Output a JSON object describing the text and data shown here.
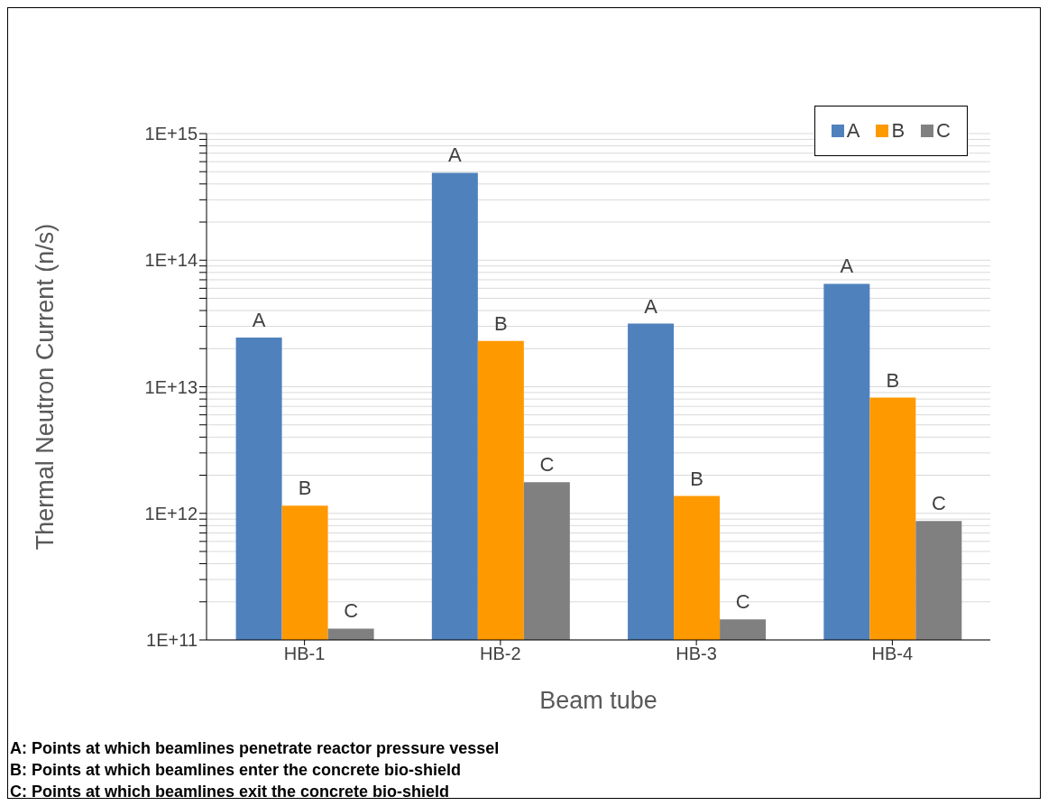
{
  "chart_data": {
    "type": "bar",
    "xlabel": "Beam tube",
    "ylabel": "Thermal Neutron Current (n/s)",
    "categories": [
      "HB-1",
      "HB-2",
      "HB-3",
      "HB-4"
    ],
    "series": [
      {
        "name": "A",
        "color": "#4f81bd",
        "values": [
          24500000000000.0,
          490000000000000.0,
          31500000000000.0,
          65000000000000.0
        ],
        "value_labels": [
          "A",
          "A",
          "A",
          "A"
        ]
      },
      {
        "name": "B",
        "color": "#ff9900",
        "values": [
          1150000000000.0,
          23000000000000.0,
          1370000000000.0,
          8200000000000.0
        ],
        "value_labels": [
          "B",
          "B",
          "B",
          "B"
        ]
      },
      {
        "name": "C",
        "color": "#808080",
        "values": [
          123000000000.0,
          1760000000000.0,
          145000000000.0,
          870000000000.0
        ],
        "value_labels": [
          "C",
          "C",
          "C",
          "C"
        ]
      }
    ],
    "log": true,
    "ylim": [
      100000000000.0,
      1000000000000000.0
    ],
    "yticks": [
      {
        "value": 100000000000.0,
        "label": "1E+11"
      },
      {
        "value": 200000000000.0,
        "label": null
      },
      {
        "value": 300000000000.0,
        "label": null
      },
      {
        "value": 400000000000.0,
        "label": null
      },
      {
        "value": 500000000000.0,
        "label": null
      },
      {
        "value": 600000000000.0,
        "label": null
      },
      {
        "value": 700000000000.0,
        "label": null
      },
      {
        "value": 800000000000.0,
        "label": null
      },
      {
        "value": 900000000000.0,
        "label": null
      },
      {
        "value": 1000000000000.0,
        "label": "1E+12"
      },
      {
        "value": 2000000000000.0,
        "label": null
      },
      {
        "value": 3000000000000.0,
        "label": null
      },
      {
        "value": 4000000000000.0,
        "label": null
      },
      {
        "value": 5000000000000.0,
        "label": null
      },
      {
        "value": 6000000000000.0,
        "label": null
      },
      {
        "value": 7000000000000.0,
        "label": null
      },
      {
        "value": 8000000000000.0,
        "label": null
      },
      {
        "value": 9000000000000.0,
        "label": null
      },
      {
        "value": 10000000000000.0,
        "label": "1E+13"
      },
      {
        "value": 20000000000000.0,
        "label": null
      },
      {
        "value": 30000000000000.0,
        "label": null
      },
      {
        "value": 40000000000000.0,
        "label": null
      },
      {
        "value": 50000000000000.0,
        "label": null
      },
      {
        "value": 60000000000000.0,
        "label": null
      },
      {
        "value": 70000000000000.0,
        "label": null
      },
      {
        "value": 80000000000000.0,
        "label": null
      },
      {
        "value": 90000000000000.0,
        "label": null
      },
      {
        "value": 100000000000000.0,
        "label": "1E+14"
      },
      {
        "value": 200000000000000.0,
        "label": null
      },
      {
        "value": 300000000000000.0,
        "label": null
      },
      {
        "value": 400000000000000.0,
        "label": null
      },
      {
        "value": 500000000000000.0,
        "label": null
      },
      {
        "value": 600000000000000.0,
        "label": null
      },
      {
        "value": 700000000000000.0,
        "label": null
      },
      {
        "value": 800000000000000.0,
        "label": null
      },
      {
        "value": 900000000000000.0,
        "label": null
      },
      {
        "value": 1000000000000000.0,
        "label": "1E+15"
      }
    ],
    "grid": "y",
    "legend": "top right",
    "annotations": [
      "A: Points at which beamlines penetrate reactor pressure vessel",
      "B: Points at which beamlines enter the concrete bio-shield",
      "C: Points at which beamlines exit the concrete bio-shield"
    ]
  }
}
